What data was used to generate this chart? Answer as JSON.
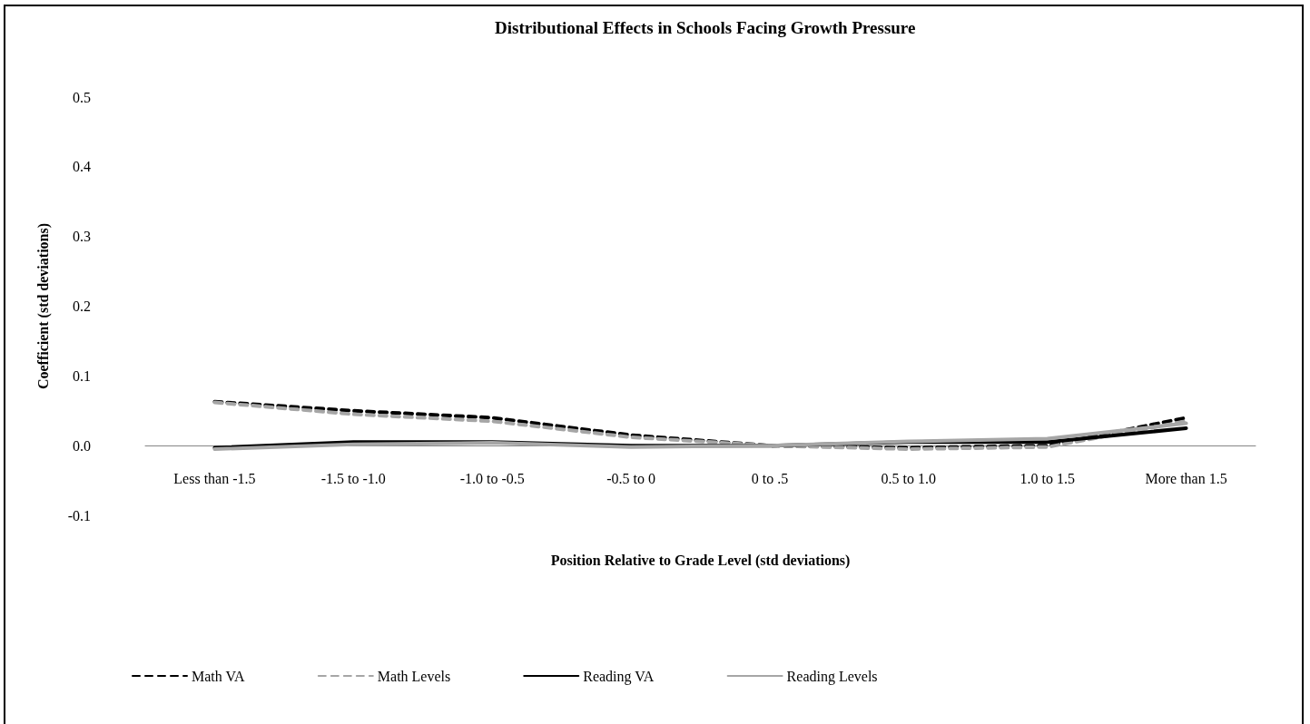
{
  "chart_data": {
    "type": "line",
    "title": "Distributional Effects in Schools Facing Growth Pressure",
    "xlabel": "Position Relative to Grade Level (std deviations)",
    "ylabel": "Coefficient (std deviations)",
    "categories": [
      "Less than -1.5",
      "-1.5 to -1.0",
      "-1.0 to -0.5",
      "-0.5 to 0",
      "0 to .5",
      "0.5 to 1.0",
      "1.0 to 1.5",
      "More than 1.5"
    ],
    "series": [
      {
        "name": "Math VA",
        "color": "#000000",
        "line_style": "dashed",
        "values": [
          0.063,
          0.05,
          0.04,
          0.015,
          0.0,
          -0.003,
          0.0,
          0.04
        ]
      },
      {
        "name": "Math Levels",
        "color": "#a6a6a6",
        "line_style": "dashed",
        "values": [
          0.062,
          0.045,
          0.035,
          0.012,
          0.0,
          -0.005,
          -0.002,
          0.035
        ]
      },
      {
        "name": "Reading VA",
        "color": "#000000",
        "line_style": "solid",
        "values": [
          -0.003,
          0.005,
          0.005,
          0.0,
          0.0,
          0.005,
          0.005,
          0.025
        ]
      },
      {
        "name": "Reading Levels",
        "color": "#a6a6a6",
        "line_style": "solid",
        "values": [
          -0.005,
          0.002,
          0.004,
          -0.002,
          0.0,
          0.006,
          0.01,
          0.032
        ]
      }
    ],
    "ylim": [
      -0.1,
      0.5
    ],
    "yticks": [
      {
        "value": -0.1,
        "label": "-0.1"
      },
      {
        "value": 0,
        "label": "0.0"
      },
      {
        "value": 0.1,
        "label": "0.1"
      },
      {
        "value": 0.2,
        "label": "0.2"
      },
      {
        "value": 0.3,
        "label": "0.3"
      },
      {
        "value": 0.4,
        "label": "0.4"
      },
      {
        "value": 0.5,
        "label": "0.5"
      }
    ],
    "grid": false,
    "legend": "bottom left",
    "marker": "none"
  }
}
